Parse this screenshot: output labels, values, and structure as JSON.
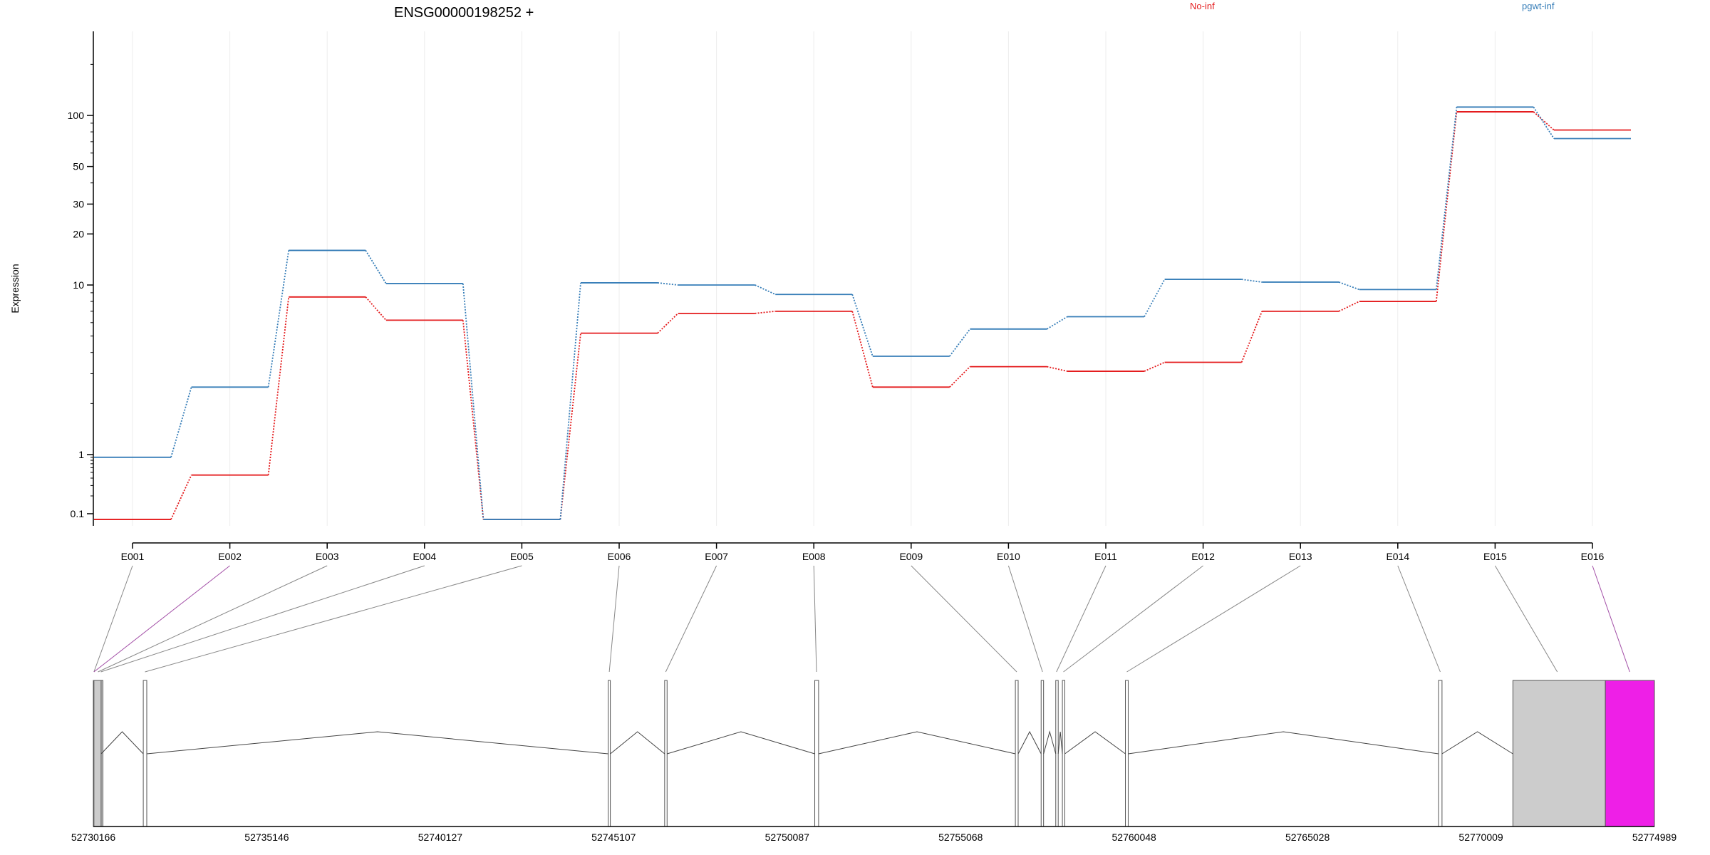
{
  "chart_data": {
    "type": "line",
    "title": "ENSG00000198252 +",
    "ylabel": "Expression",
    "xlabel": "",
    "y_scale": "log",
    "y_ticks": [
      "100",
      "50",
      "30",
      "20",
      "10",
      "1",
      "0.1"
    ],
    "y_tick_values": [
      100,
      50,
      30,
      20,
      10,
      1,
      0.1
    ],
    "grid": "vertical",
    "legend_placement": "top-right",
    "categories": [
      "E001",
      "E002",
      "E003",
      "E004",
      "E005",
      "E006",
      "E007",
      "E008",
      "E009",
      "E010",
      "E011",
      "E012",
      "E013",
      "E014",
      "E015",
      "E016"
    ],
    "series": [
      {
        "name": "No-inf",
        "color": "#e41a1c",
        "values": [
          0.08,
          0.45,
          8.5,
          6.2,
          0.08,
          5.2,
          6.8,
          7.0,
          2.5,
          3.3,
          3.1,
          3.5,
          7.0,
          8.0,
          105,
          82
        ]
      },
      {
        "name": "pgwt-inf",
        "color": "#377eb8",
        "values": [
          0.9,
          2.5,
          16,
          10.2,
          0.08,
          10.3,
          10.0,
          8.8,
          3.8,
          5.5,
          6.5,
          10.8,
          10.4,
          9.4,
          112,
          73
        ]
      }
    ],
    "gene_axis": {
      "start": 52730166,
      "end": 52774989,
      "tick_labels": [
        "52730166",
        "52735146",
        "52740127",
        "52745107",
        "52750087",
        "52755068",
        "52760048",
        "52765028",
        "52770009",
        "52774989"
      ]
    }
  },
  "colors": {
    "no_inf": "#e41a1c",
    "pgwt_inf": "#377eb8",
    "exon_highlight": "#ee1fe7",
    "exon_grey": "#cccccc",
    "connector": "#888888",
    "connector_highlight": "#a24ea6"
  }
}
